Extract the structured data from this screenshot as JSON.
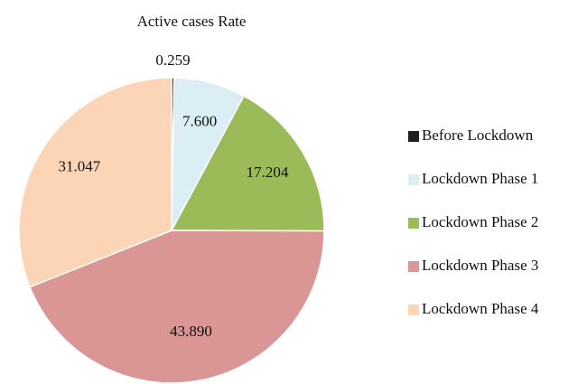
{
  "chart_data": {
    "type": "pie",
    "title": "Active cases Rate",
    "categories": [
      "Before Lockdown",
      "Lockdown Phase 1",
      "Lockdown Phase 2",
      "Lockdown Phase 3",
      "Lockdown Phase 4"
    ],
    "values": [
      0.259,
      7.6,
      17.204,
      43.89,
      31.047
    ],
    "value_labels": [
      "0.259",
      "7.600",
      "17.204",
      "43.890",
      "31.047"
    ],
    "colors": [
      "#1f1f1f",
      "#daeef3",
      "#9bbb59",
      "#d99694",
      "#fbd5b5"
    ],
    "legend": "right"
  }
}
